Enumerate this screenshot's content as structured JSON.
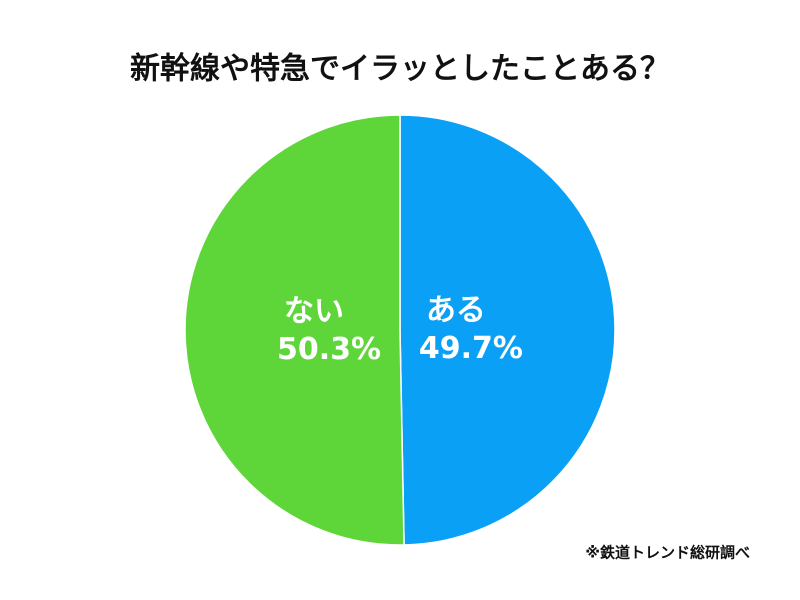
{
  "chart_data": {
    "type": "pie",
    "title": "新幹線や特急でイラッとしたことある？",
    "categories": [
      "ある",
      "ない"
    ],
    "values": [
      49.7,
      50.3
    ],
    "value_labels": [
      "49.7%",
      "50.3%"
    ],
    "colors": [
      "#0aa0f6",
      "#5ed63a"
    ],
    "note": "※鉄道トレンド総研調べ"
  }
}
